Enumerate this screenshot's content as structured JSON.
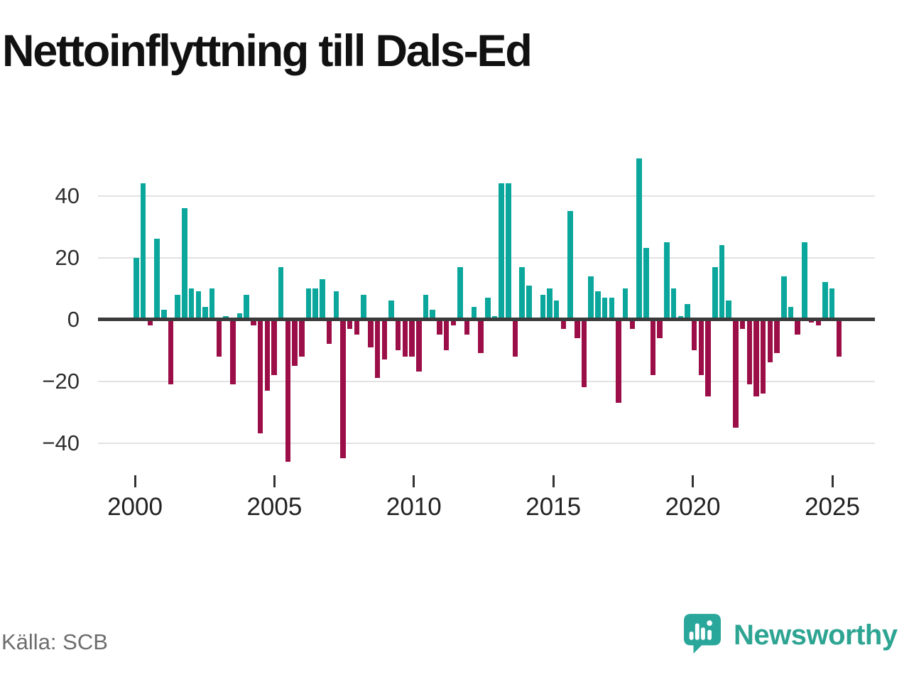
{
  "title": "Nettoinflyttning till Dals-Ed",
  "source_label": "Källa: SCB",
  "brand": {
    "name": "Newsworthy",
    "text_color": "#2ea492",
    "icon_color": "#2aa79b"
  },
  "colors": {
    "positive": "#0ba79c",
    "negative": "#9c0e47",
    "zero_line": "#3b3b3b",
    "gridline": "#e2e2e2",
    "axis_text": "#2e2e2e"
  },
  "chart_data": {
    "type": "bar",
    "title": "Nettoinflyttning till Dals-Ed",
    "frequency": "quarterly",
    "x_start": "2000 Q1",
    "x_end": "2025 Q3",
    "values": [
      20,
      44,
      -2,
      26,
      3,
      -21,
      8,
      36,
      10,
      9,
      4,
      10,
      -12,
      1,
      -21,
      2,
      8,
      -2,
      -37,
      -23,
      -18,
      17,
      -46,
      -15,
      -12,
      10,
      10,
      13,
      -8,
      9,
      -45,
      -3,
      -5,
      8,
      -9,
      -19,
      -13,
      6,
      -10,
      -12,
      -12,
      -17,
      8,
      3,
      -5,
      -10,
      -2,
      17,
      -5,
      4,
      -11,
      7,
      1,
      44,
      44,
      -12,
      17,
      11,
      0,
      8,
      10,
      6,
      -3,
      35,
      -6,
      -22,
      14,
      9,
      7,
      7,
      -27,
      10,
      -3,
      52,
      23,
      -18,
      -6,
      25,
      10,
      1,
      5,
      -10,
      -18,
      -25,
      17,
      24,
      6,
      -35,
      -3,
      -21,
      -25,
      -24,
      -14,
      -11,
      14,
      4,
      -5,
      25,
      -1,
      -2,
      12,
      10,
      -12
    ],
    "x_tick_labels": [
      "2000",
      "2005",
      "2010",
      "2015",
      "2020",
      "2025"
    ],
    "x_tick_years": [
      2000,
      2005,
      2010,
      2015,
      2020,
      2025
    ],
    "y_ticks": [
      40,
      20,
      0,
      -20,
      -40
    ],
    "ylim": [
      -50,
      55
    ],
    "grid": true,
    "legend": "none"
  }
}
